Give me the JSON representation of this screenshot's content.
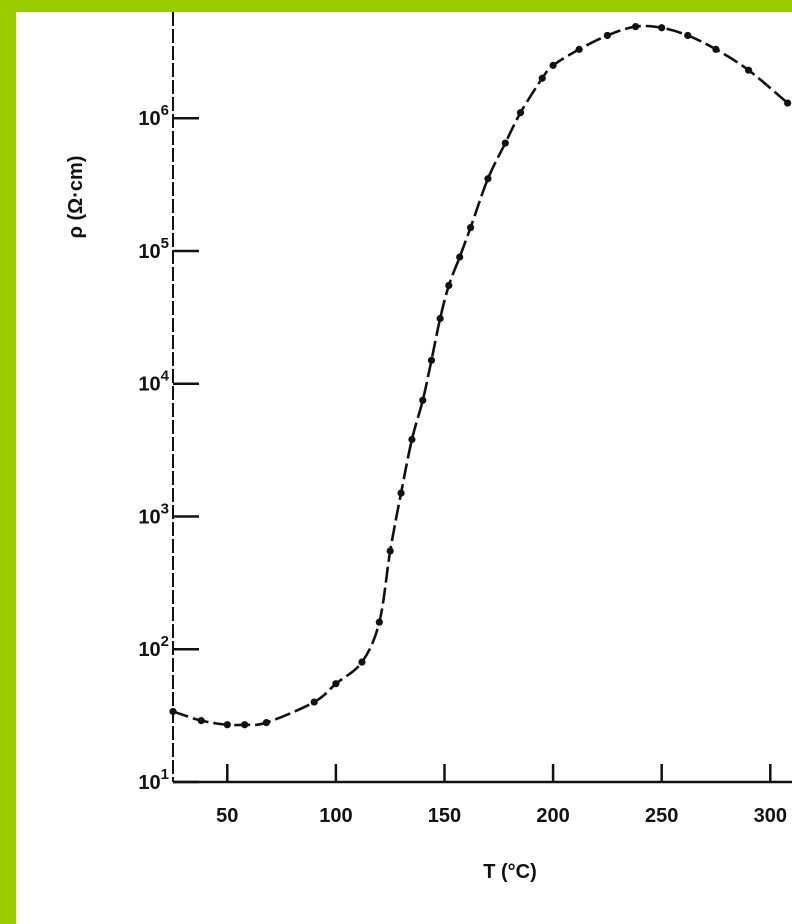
{
  "colors": {
    "background": "#9acd00",
    "panel": "#ffffff",
    "ink": "#111111"
  },
  "chart_data": {
    "type": "scatter",
    "xlabel": "T (°C)",
    "ylabel": "ρ (Ω·cm)",
    "xlim": [
      25,
      310
    ],
    "ylim_log10": [
      1,
      6.8
    ],
    "y_scale": "log",
    "grid": false,
    "x_ticks": [
      50,
      100,
      150,
      200,
      250,
      300
    ],
    "x_tick_labels": [
      "50",
      "100",
      "150",
      "200",
      "250",
      "300"
    ],
    "y_ticks": [
      1,
      2,
      3,
      4,
      5,
      6
    ],
    "y_tick_labels": [
      {
        "base": "10",
        "exp": "1"
      },
      {
        "base": "10",
        "exp": "2"
      },
      {
        "base": "10",
        "exp": "3"
      },
      {
        "base": "10",
        "exp": "4"
      },
      {
        "base": "10",
        "exp": "5"
      },
      {
        "base": "10",
        "exp": "6"
      }
    ],
    "series": [
      {
        "points": [
          {
            "x": 25,
            "y": 34
          },
          {
            "x": 38,
            "y": 29
          },
          {
            "x": 50,
            "y": 27
          },
          {
            "x": 58,
            "y": 27
          },
          {
            "x": 68,
            "y": 28
          },
          {
            "x": 90,
            "y": 40
          },
          {
            "x": 100,
            "y": 55
          },
          {
            "x": 112,
            "y": 80
          },
          {
            "x": 120,
            "y": 160
          },
          {
            "x": 125,
            "y": 550
          },
          {
            "x": 130,
            "y": 1500
          },
          {
            "x": 135,
            "y": 3800
          },
          {
            "x": 140,
            "y": 7500
          },
          {
            "x": 144,
            "y": 15000
          },
          {
            "x": 148,
            "y": 31000
          },
          {
            "x": 152,
            "y": 55000
          },
          {
            "x": 157,
            "y": 90000
          },
          {
            "x": 162,
            "y": 150000
          },
          {
            "x": 170,
            "y": 350000
          },
          {
            "x": 178,
            "y": 650000
          },
          {
            "x": 185,
            "y": 1100000
          },
          {
            "x": 195,
            "y": 2000000
          },
          {
            "x": 200,
            "y": 2500000
          },
          {
            "x": 212,
            "y": 3300000
          },
          {
            "x": 225,
            "y": 4200000
          },
          {
            "x": 238,
            "y": 4900000
          },
          {
            "x": 250,
            "y": 4800000
          },
          {
            "x": 262,
            "y": 4200000
          },
          {
            "x": 275,
            "y": 3300000
          },
          {
            "x": 290,
            "y": 2300000
          },
          {
            "x": 308,
            "y": 1300000
          }
        ]
      }
    ]
  }
}
